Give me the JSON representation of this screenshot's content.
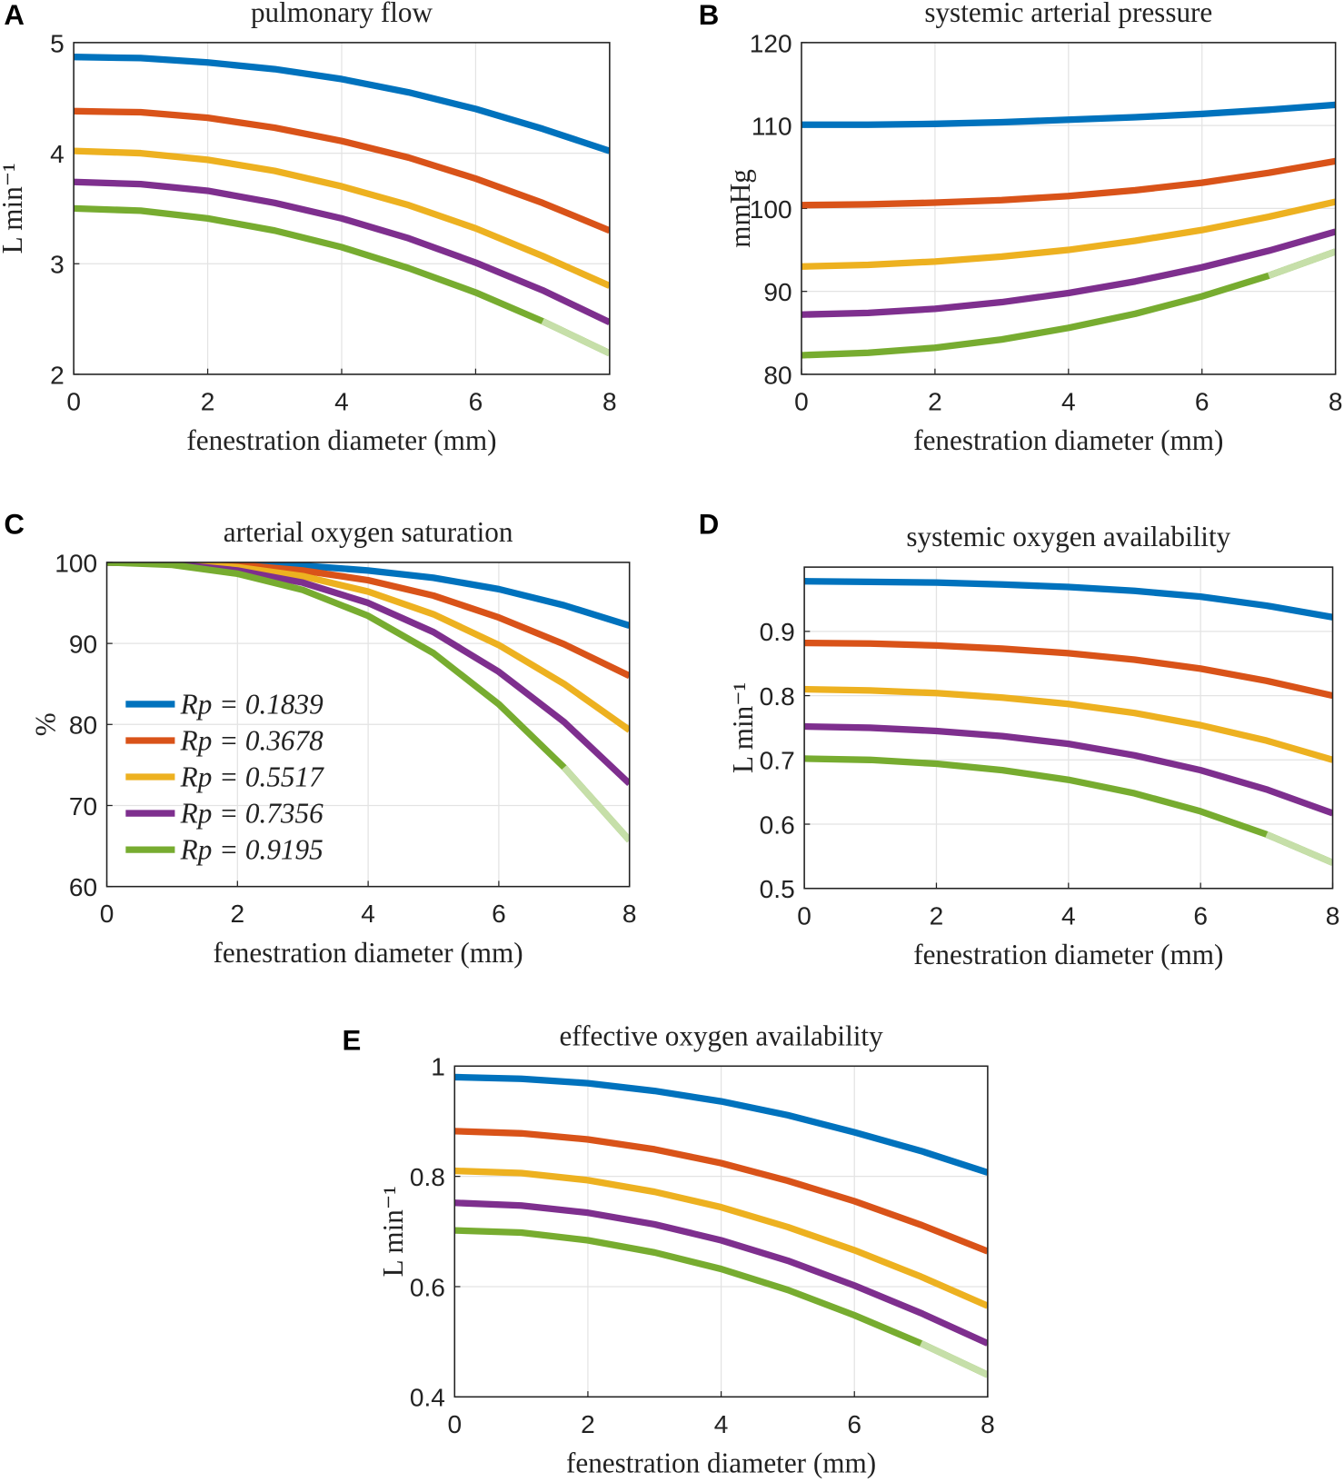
{
  "chart_data": [
    {
      "type": "line",
      "panel_label": "A",
      "title": "pulmonary flow",
      "x_label": "fenestration diameter (mm)",
      "y_label": "L min⁻¹",
      "x": [
        0,
        1,
        2,
        3,
        4,
        5,
        6,
        7,
        8
      ],
      "xlim": [
        0,
        8
      ],
      "xticks": [
        0,
        2,
        4,
        6,
        8
      ],
      "ylim": [
        2,
        5
      ],
      "yticks": [
        2,
        3,
        4,
        5
      ],
      "grid": true,
      "legend": false,
      "series": [
        {
          "name": "Rp = 0.1839",
          "color": "#0072BD",
          "values": [
            4.87,
            4.86,
            4.82,
            4.76,
            4.67,
            4.55,
            4.4,
            4.22,
            4.02
          ]
        },
        {
          "name": "Rp = 0.3678",
          "color": "#D95319",
          "values": [
            4.38,
            4.37,
            4.32,
            4.23,
            4.11,
            3.96,
            3.77,
            3.55,
            3.3
          ]
        },
        {
          "name": "Rp = 0.5517",
          "color": "#EDB120",
          "values": [
            4.02,
            4.0,
            3.94,
            3.84,
            3.7,
            3.53,
            3.32,
            3.07,
            2.8
          ]
        },
        {
          "name": "Rp = 0.7356",
          "color": "#7E2F8E",
          "values": [
            3.74,
            3.72,
            3.66,
            3.55,
            3.41,
            3.23,
            3.01,
            2.76,
            2.47
          ]
        },
        {
          "name": "Rp = 0.9195",
          "color": "#77AC30",
          "faded_from_x": 7,
          "faded_color": "#c6dfa9",
          "values": [
            3.5,
            3.48,
            3.41,
            3.3,
            3.15,
            2.96,
            2.74,
            2.48,
            2.19
          ]
        }
      ]
    },
    {
      "type": "line",
      "panel_label": "B",
      "title": "systemic arterial pressure",
      "x_label": "fenestration diameter (mm)",
      "y_label": "mmHg",
      "x": [
        0,
        1,
        2,
        3,
        4,
        5,
        6,
        7,
        8
      ],
      "xlim": [
        0,
        8
      ],
      "xticks": [
        0,
        2,
        4,
        6,
        8
      ],
      "ylim": [
        80,
        120
      ],
      "yticks": [
        80,
        90,
        100,
        110,
        120
      ],
      "grid": true,
      "legend": false,
      "series": [
        {
          "name": "Rp = 0.1839",
          "color": "#0072BD",
          "values": [
            110.1,
            110.1,
            110.2,
            110.4,
            110.7,
            111.0,
            111.4,
            111.9,
            112.5
          ]
        },
        {
          "name": "Rp = 0.3678",
          "color": "#D95319",
          "values": [
            100.4,
            100.5,
            100.7,
            101.0,
            101.5,
            102.2,
            103.1,
            104.3,
            105.7
          ]
        },
        {
          "name": "Rp = 0.5517",
          "color": "#EDB120",
          "values": [
            93.0,
            93.2,
            93.6,
            94.2,
            95.0,
            96.1,
            97.4,
            99.0,
            100.8
          ]
        },
        {
          "name": "Rp = 0.7356",
          "color": "#7E2F8E",
          "values": [
            87.2,
            87.4,
            87.9,
            88.7,
            89.8,
            91.2,
            92.9,
            94.9,
            97.2
          ]
        },
        {
          "name": "Rp = 0.9195",
          "color": "#77AC30",
          "faded_from_x": 7,
          "faded_color": "#c6dfa9",
          "values": [
            82.3,
            82.6,
            83.2,
            84.2,
            85.6,
            87.3,
            89.4,
            91.9,
            94.8
          ]
        }
      ]
    },
    {
      "type": "line",
      "panel_label": "C",
      "title": "arterial oxygen saturation",
      "x_label": "fenestration diameter (mm)",
      "y_label": "%",
      "x": [
        0,
        1,
        2,
        3,
        4,
        5,
        6,
        7,
        8
      ],
      "xlim": [
        0,
        8
      ],
      "xticks": [
        0,
        2,
        4,
        6,
        8
      ],
      "ylim": [
        60,
        100
      ],
      "yticks": [
        60,
        70,
        80,
        90,
        100
      ],
      "grid": true,
      "legend": true,
      "series": [
        {
          "name": "Rp = 0.1839",
          "color": "#0072BD",
          "values": [
            100,
            100,
            99.9,
            99.6,
            99.0,
            98.1,
            96.7,
            94.7,
            92.2
          ]
        },
        {
          "name": "Rp = 0.3678",
          "color": "#D95319",
          "values": [
            100,
            100,
            99.7,
            99.0,
            97.8,
            95.9,
            93.2,
            89.9,
            86.0
          ]
        },
        {
          "name": "Rp = 0.5517",
          "color": "#EDB120",
          "values": [
            100,
            99.9,
            99.4,
            98.3,
            96.4,
            93.6,
            89.8,
            85.0,
            79.3
          ]
        },
        {
          "name": "Rp = 0.7356",
          "color": "#7E2F8E",
          "values": [
            100,
            99.8,
            99.0,
            97.5,
            95.0,
            91.4,
            86.5,
            80.3,
            72.7
          ]
        },
        {
          "name": "Rp = 0.9195",
          "color": "#77AC30",
          "faded_from_x": 7,
          "faded_color": "#c6dfa9",
          "values": [
            100,
            99.7,
            98.6,
            96.6,
            93.4,
            88.8,
            82.5,
            74.7,
            65.7
          ]
        }
      ]
    },
    {
      "type": "line",
      "panel_label": "D",
      "title": "systemic oxygen availability",
      "x_label": "fenestration diameter (mm)",
      "y_label": "L min⁻¹",
      "x": [
        0,
        1,
        2,
        3,
        4,
        5,
        6,
        7,
        8
      ],
      "xlim": [
        0,
        8
      ],
      "xticks": [
        0,
        2,
        4,
        6,
        8
      ],
      "ylim": [
        0.5,
        1
      ],
      "yticks": [
        0.5,
        0.6,
        0.7,
        0.8,
        0.9
      ],
      "grid": true,
      "legend": false,
      "series": [
        {
          "name": "Rp = 0.1839",
          "color": "#0072BD",
          "values": [
            0.978,
            0.977,
            0.976,
            0.973,
            0.969,
            0.963,
            0.954,
            0.94,
            0.922
          ]
        },
        {
          "name": "Rp = 0.3678",
          "color": "#D95319",
          "values": [
            0.882,
            0.881,
            0.878,
            0.873,
            0.866,
            0.856,
            0.842,
            0.823,
            0.8
          ]
        },
        {
          "name": "Rp = 0.5517",
          "color": "#EDB120",
          "values": [
            0.81,
            0.808,
            0.804,
            0.797,
            0.787,
            0.773,
            0.754,
            0.73,
            0.7
          ]
        },
        {
          "name": "Rp = 0.7356",
          "color": "#7E2F8E",
          "values": [
            0.752,
            0.75,
            0.745,
            0.737,
            0.725,
            0.707,
            0.684,
            0.654,
            0.617
          ]
        },
        {
          "name": "Rp = 0.9195",
          "color": "#77AC30",
          "faded_from_x": 7,
          "faded_color": "#c6dfa9",
          "values": [
            0.702,
            0.7,
            0.694,
            0.684,
            0.669,
            0.648,
            0.62,
            0.584,
            0.54
          ]
        }
      ]
    },
    {
      "type": "line",
      "panel_label": "E",
      "title": "effective oxygen availability",
      "x_label": "fenestration diameter (mm)",
      "y_label": "L min⁻¹",
      "x": [
        0,
        1,
        2,
        3,
        4,
        5,
        6,
        7,
        8
      ],
      "xlim": [
        0,
        8
      ],
      "xticks": [
        0,
        2,
        4,
        6,
        8
      ],
      "ylim": [
        0.4,
        1
      ],
      "yticks": [
        0.4,
        0.6,
        0.8,
        1
      ],
      "grid": true,
      "legend": false,
      "series": [
        {
          "name": "Rp = 0.1839",
          "color": "#0072BD",
          "values": [
            0.98,
            0.977,
            0.969,
            0.955,
            0.936,
            0.911,
            0.88,
            0.846,
            0.807
          ]
        },
        {
          "name": "Rp = 0.3678",
          "color": "#D95319",
          "values": [
            0.882,
            0.878,
            0.867,
            0.849,
            0.824,
            0.792,
            0.755,
            0.712,
            0.664
          ]
        },
        {
          "name": "Rp = 0.5517",
          "color": "#EDB120",
          "values": [
            0.81,
            0.806,
            0.793,
            0.772,
            0.744,
            0.708,
            0.666,
            0.618,
            0.565
          ]
        },
        {
          "name": "Rp = 0.7356",
          "color": "#7E2F8E",
          "values": [
            0.752,
            0.747,
            0.734,
            0.713,
            0.684,
            0.647,
            0.602,
            0.552,
            0.497
          ]
        },
        {
          "name": "Rp = 0.9195",
          "color": "#77AC30",
          "faded_from_x": 7,
          "faded_color": "#c6dfa9",
          "values": [
            0.702,
            0.698,
            0.684,
            0.662,
            0.632,
            0.594,
            0.548,
            0.497,
            0.44
          ]
        }
      ]
    }
  ]
}
